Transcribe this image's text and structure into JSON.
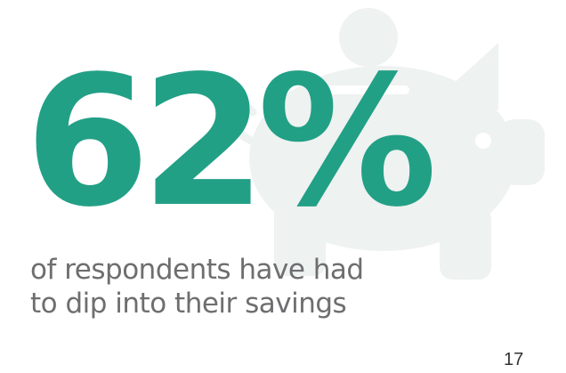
{
  "slide": {
    "stat": "62%",
    "caption": "of respondents have had to dip into their savings",
    "page_number": "17"
  },
  "background_icon": "piggy-bank-icon",
  "colors": {
    "accent": "#22a086",
    "caption_text": "#6e6e70",
    "watermark": "#eef2f0",
    "page_number": "#333333"
  }
}
